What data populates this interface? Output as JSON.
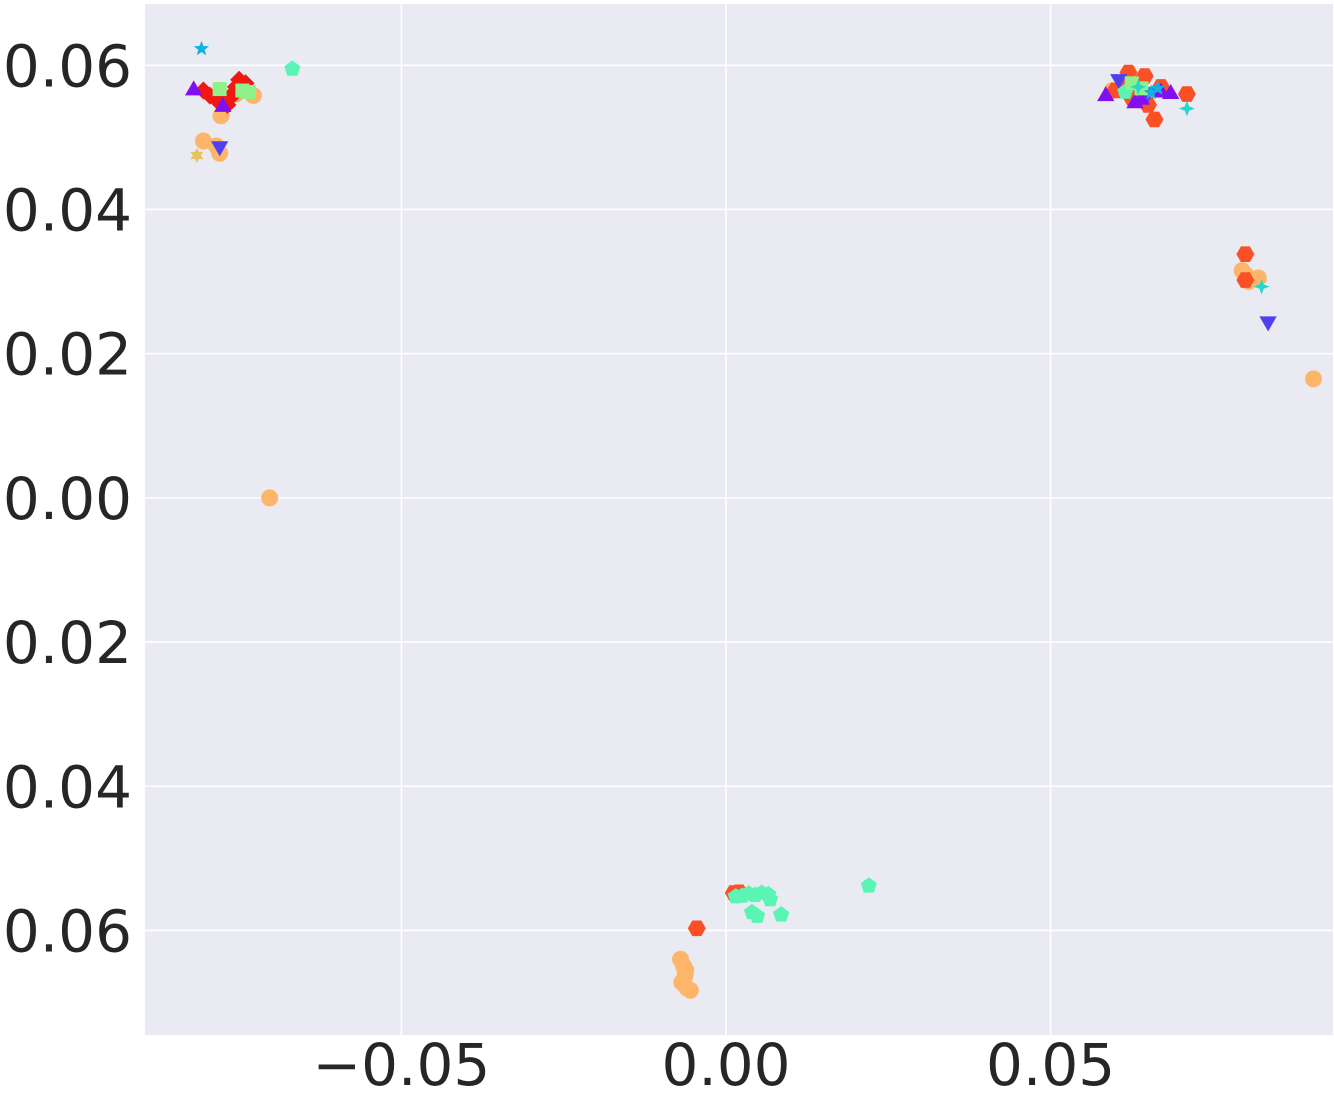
{
  "chart_data": {
    "type": "scatter",
    "title": "",
    "xlabel": "",
    "ylabel": "",
    "grid": true,
    "background": "#EAEAF2",
    "gridcolor": "#FFFFFF",
    "xlim": [
      -0.0895,
      0.0935
    ],
    "ylim": [
      -0.0745,
      0.0685
    ],
    "xticks": [
      {
        "v": -0.05,
        "label": "−0.05"
      },
      {
        "v": 0.0,
        "label": "0.00"
      },
      {
        "v": 0.05,
        "label": "0.05"
      }
    ],
    "yticks": [
      {
        "v": 0.06,
        "label": "0.06"
      },
      {
        "v": 0.04,
        "label": "0.04"
      },
      {
        "v": 0.02,
        "label": "0.02"
      },
      {
        "v": 0.0,
        "label": "0.00"
      },
      {
        "v": -0.02,
        "label": "−0.02"
      },
      {
        "v": -0.04,
        "label": "−0.04"
      },
      {
        "v": -0.06,
        "label": "−0.06"
      }
    ],
    "series": [
      {
        "marker": "circle",
        "color": "#FDB56A",
        "points": [
          [
            -0.0805,
            0.0495
          ],
          [
            -0.0785,
            0.0488
          ],
          [
            -0.078,
            0.0478
          ],
          [
            -0.0778,
            0.053
          ],
          [
            -0.0755,
            0.056
          ],
          [
            -0.0728,
            0.0558
          ],
          [
            -0.0703,
            0.0
          ],
          [
            -0.007,
            -0.064
          ],
          [
            -0.0065,
            -0.065
          ],
          [
            -0.0063,
            -0.0662
          ],
          [
            -0.0068,
            -0.0672
          ],
          [
            -0.006,
            -0.068
          ],
          [
            -0.0055,
            -0.0683
          ],
          [
            -0.0062,
            -0.0655
          ],
          [
            0.0795,
            0.0315
          ],
          [
            0.08,
            0.031
          ],
          [
            0.082,
            0.0305
          ],
          [
            0.0805,
            0.03
          ],
          [
            0.0905,
            0.0165
          ],
          [
            0.0595,
            0.0565
          ],
          [
            0.062,
            0.057
          ],
          [
            0.064,
            0.056
          ]
        ]
      },
      {
        "marker": "hexagon",
        "color": "#FB4F26",
        "points": [
          [
            -0.0045,
            -0.0597
          ],
          [
            0.0012,
            -0.0548
          ],
          [
            0.002,
            -0.0547
          ],
          [
            0.06,
            0.0565
          ],
          [
            0.0615,
            0.0575
          ],
          [
            0.062,
            0.059
          ],
          [
            0.0645,
            0.0585
          ],
          [
            0.065,
            0.0545
          ],
          [
            0.066,
            0.0525
          ],
          [
            0.067,
            0.057
          ],
          [
            0.071,
            0.056
          ],
          [
            0.08,
            0.0338
          ],
          [
            0.08,
            0.0302
          ],
          [
            0.0625,
            0.0555
          ]
        ]
      },
      {
        "marker": "diamond",
        "color": "#F01810",
        "points": [
          [
            -0.0805,
            0.0565
          ],
          [
            -0.0795,
            0.0558
          ],
          [
            -0.0785,
            0.0552
          ],
          [
            -0.0775,
            0.0548
          ],
          [
            -0.0765,
            0.0556
          ],
          [
            -0.0755,
            0.057
          ],
          [
            -0.075,
            0.058
          ],
          [
            -0.074,
            0.0575
          ],
          [
            -0.0768,
            0.0545
          ],
          [
            -0.078,
            0.056
          ],
          [
            -0.0758,
            0.056
          ]
        ]
      },
      {
        "marker": "triangle-up",
        "color": "#8010F0",
        "points": [
          [
            -0.082,
            0.0568
          ],
          [
            -0.0775,
            0.0545
          ],
          [
            0.0585,
            0.056
          ],
          [
            0.064,
            0.0555
          ],
          [
            0.067,
            0.0565
          ],
          [
            0.0685,
            0.0563
          ],
          [
            0.063,
            0.055
          ]
        ]
      },
      {
        "marker": "triangle-down",
        "color": "#5040F0",
        "points": [
          [
            -0.078,
            0.0485
          ],
          [
            0.0605,
            0.0578
          ],
          [
            0.0835,
            0.0242
          ],
          [
            0.065,
            0.056
          ]
        ]
      },
      {
        "marker": "pentagon",
        "color": "#5AF5B5",
        "points": [
          [
            -0.0668,
            0.0595
          ],
          [
            0.0015,
            -0.0553
          ],
          [
            0.0025,
            -0.0552
          ],
          [
            0.0035,
            -0.0549
          ],
          [
            0.0045,
            -0.0551
          ],
          [
            0.0055,
            -0.0548
          ],
          [
            0.0065,
            -0.055
          ],
          [
            0.0068,
            -0.0557
          ],
          [
            0.004,
            -0.0575
          ],
          [
            0.0048,
            -0.058
          ],
          [
            0.0085,
            -0.0578
          ],
          [
            0.022,
            -0.0538
          ],
          [
            0.0615,
            0.0563
          ]
        ]
      },
      {
        "marker": "square",
        "color": "#90F08A",
        "points": [
          [
            -0.078,
            0.0567
          ],
          [
            -0.0745,
            0.0565
          ],
          [
            -0.0735,
            0.0563
          ],
          [
            0.0625,
            0.0575
          ],
          [
            0.064,
            0.0568
          ]
        ]
      },
      {
        "marker": "star",
        "color": "#12B0E6",
        "points": [
          [
            -0.0808,
            0.0623
          ],
          [
            0.0665,
            0.0568
          ],
          [
            0.0655,
            0.0562
          ]
        ]
      },
      {
        "marker": "star6",
        "color": "#E6C260",
        "points": [
          [
            -0.0815,
            0.0475
          ]
        ]
      },
      {
        "marker": "plus",
        "color": "#20D8CC",
        "points": [
          [
            0.071,
            0.054
          ],
          [
            0.0825,
            0.0293
          ],
          [
            0.0635,
            0.057
          ]
        ]
      }
    ]
  }
}
